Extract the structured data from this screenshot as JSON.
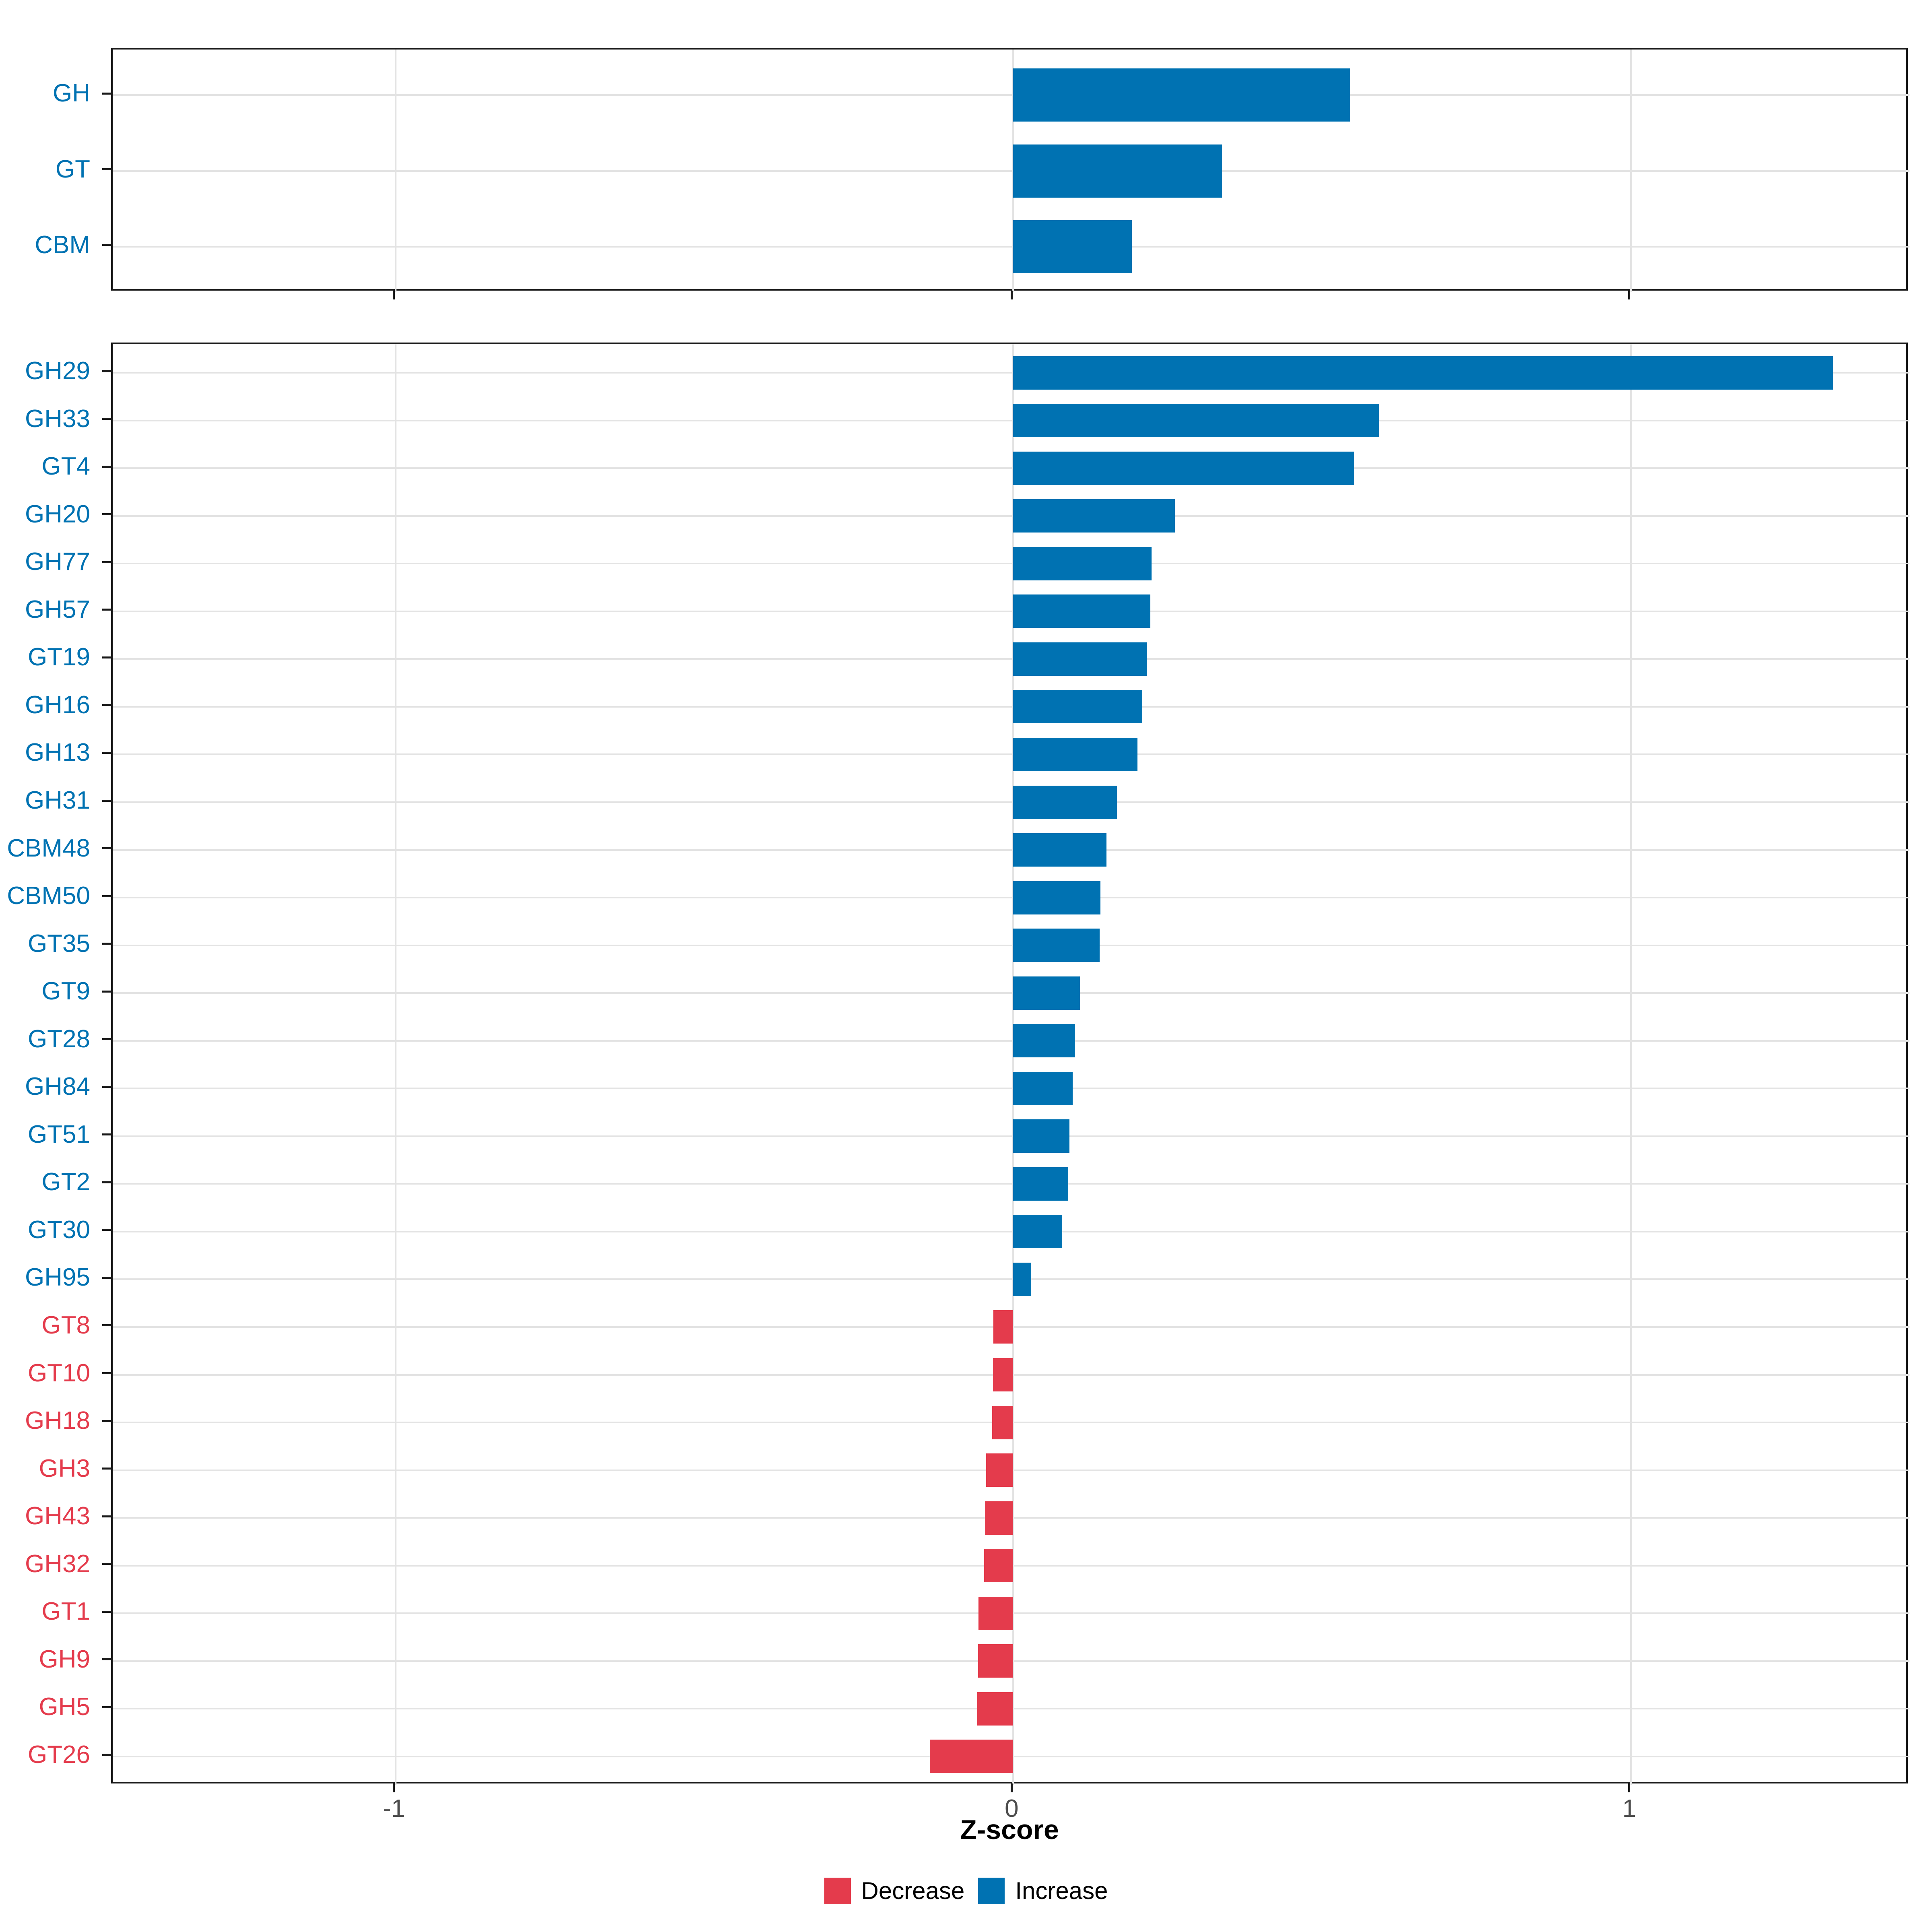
{
  "chart_data": {
    "type": "bar",
    "orientation": "horizontal",
    "xlabel": "Z-score",
    "x_tick_labels": [
      "-1",
      "0",
      "1"
    ],
    "x_tick_values": [
      -1,
      0,
      1
    ],
    "xlim": [
      -1.458,
      1.451
    ],
    "grid": "major",
    "legend_position": "bottom",
    "colors": {
      "Increase": "#0072B2",
      "Decrease": "#E43B4C"
    },
    "legend": [
      {
        "label": "Decrease",
        "color": "#E43B4C"
      },
      {
        "label": "Increase",
        "color": "#0072B2"
      }
    ],
    "panels": [
      {
        "id": "class-summary",
        "bars": [
          {
            "label": "GH",
            "value": 0.545,
            "direction": "Increase"
          },
          {
            "label": "GT",
            "value": 0.338,
            "direction": "Increase"
          },
          {
            "label": "CBM",
            "value": 0.192,
            "direction": "Increase"
          }
        ]
      },
      {
        "id": "family-detail",
        "bars": [
          {
            "label": "GH29",
            "value": 1.327,
            "direction": "Increase"
          },
          {
            "label": "GH33",
            "value": 0.592,
            "direction": "Increase"
          },
          {
            "label": "GT4",
            "value": 0.552,
            "direction": "Increase"
          },
          {
            "label": "GH20",
            "value": 0.262,
            "direction": "Increase"
          },
          {
            "label": "GH77",
            "value": 0.224,
            "direction": "Increase"
          },
          {
            "label": "GH57",
            "value": 0.222,
            "direction": "Increase"
          },
          {
            "label": "GT19",
            "value": 0.216,
            "direction": "Increase"
          },
          {
            "label": "GH16",
            "value": 0.209,
            "direction": "Increase"
          },
          {
            "label": "GH13",
            "value": 0.201,
            "direction": "Increase"
          },
          {
            "label": "GH31",
            "value": 0.168,
            "direction": "Increase"
          },
          {
            "label": "CBM48",
            "value": 0.151,
            "direction": "Increase"
          },
          {
            "label": "CBM50",
            "value": 0.141,
            "direction": "Increase"
          },
          {
            "label": "GT35",
            "value": 0.14,
            "direction": "Increase"
          },
          {
            "label": "GT9",
            "value": 0.108,
            "direction": "Increase"
          },
          {
            "label": "GT28",
            "value": 0.1,
            "direction": "Increase"
          },
          {
            "label": "GH84",
            "value": 0.096,
            "direction": "Increase"
          },
          {
            "label": "GT51",
            "value": 0.091,
            "direction": "Increase"
          },
          {
            "label": "GT2",
            "value": 0.089,
            "direction": "Increase"
          },
          {
            "label": "GT30",
            "value": 0.079,
            "direction": "Increase"
          },
          {
            "label": "GH95",
            "value": 0.029,
            "direction": "Increase"
          },
          {
            "label": "GT8",
            "value": -0.032,
            "direction": "Decrease"
          },
          {
            "label": "GT10",
            "value": -0.033,
            "direction": "Decrease"
          },
          {
            "label": "GH18",
            "value": -0.034,
            "direction": "Decrease"
          },
          {
            "label": "GH3",
            "value": -0.044,
            "direction": "Decrease"
          },
          {
            "label": "GH43",
            "value": -0.046,
            "direction": "Decrease"
          },
          {
            "label": "GH32",
            "value": -0.047,
            "direction": "Decrease"
          },
          {
            "label": "GT1",
            "value": -0.056,
            "direction": "Decrease"
          },
          {
            "label": "GH9",
            "value": -0.057,
            "direction": "Decrease"
          },
          {
            "label": "GH5",
            "value": -0.058,
            "direction": "Decrease"
          },
          {
            "label": "GT26",
            "value": -0.135,
            "direction": "Decrease"
          }
        ]
      }
    ]
  }
}
